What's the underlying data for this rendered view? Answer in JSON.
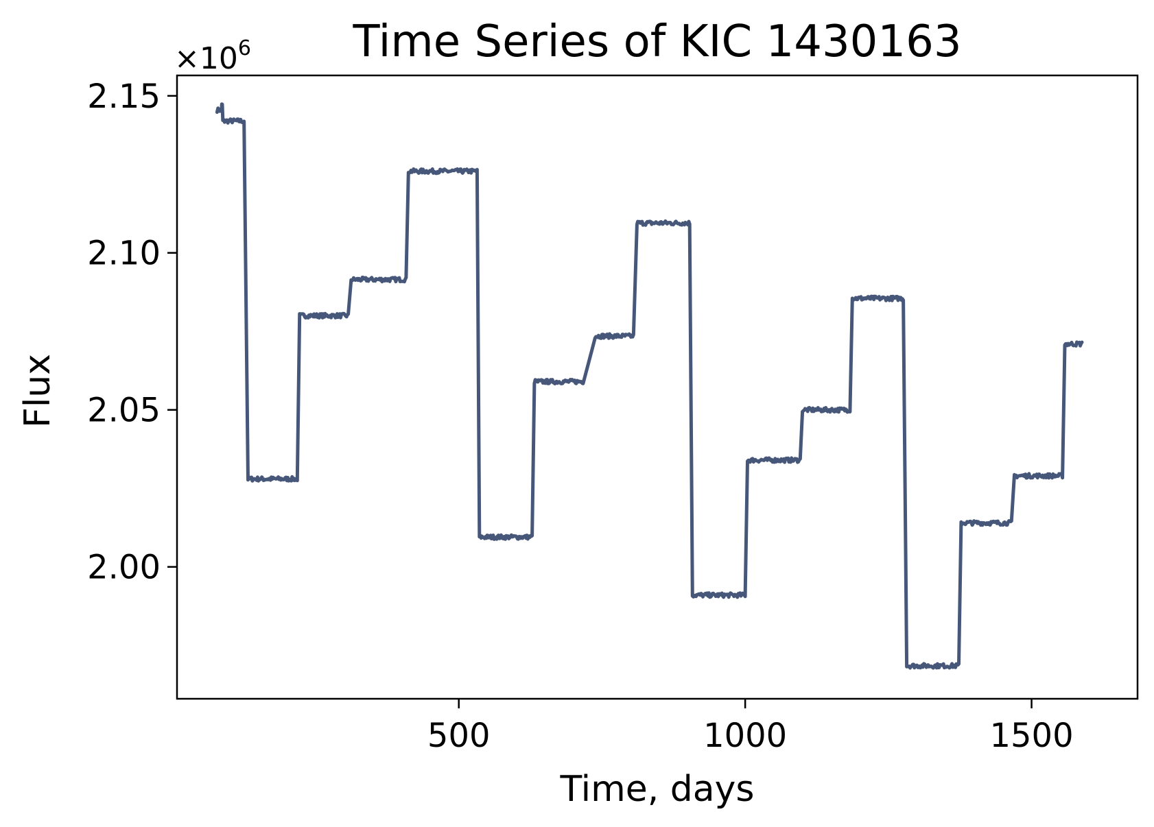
{
  "chart_data": {
    "type": "line",
    "title": "Time Series of KIC 1430163",
    "xlabel": "Time, days",
    "ylabel": "Flux",
    "y_multiplier": {
      "base": "×10",
      "exp": "6"
    },
    "xlim": [
      8,
      1685
    ],
    "ylim": [
      1.958,
      2.1565
    ],
    "x_ticks": [
      500,
      1000,
      1500
    ],
    "x_tick_labels": [
      "500",
      "1000",
      "1500"
    ],
    "y_ticks": [
      2.0,
      2.05,
      2.1,
      2.15
    ],
    "y_tick_labels": [
      "2.00",
      "2.05",
      "2.10",
      "2.15"
    ],
    "grid": false,
    "color": "#46577a",
    "series": [
      {
        "segments": [
          {
            "x0": 78,
            "x1": 86,
            "y": 2.1455
          },
          {
            "x0": 86,
            "x1": 87,
            "y": 2.147
          },
          {
            "x0": 88,
            "x1": 125,
            "y": 2.142
          },
          {
            "x0": 132,
            "x1": 218,
            "y": 2.028
          },
          {
            "x0": 222,
            "x1": 307,
            "y": 2.08
          },
          {
            "x0": 312,
            "x1": 408,
            "y": 2.0915
          },
          {
            "x0": 412,
            "x1": 532,
            "y": 2.126
          },
          {
            "x0": 536,
            "x1": 628,
            "y": 2.0095
          },
          {
            "x0": 632,
            "x1": 717,
            "y": 2.059
          },
          {
            "x0": 738,
            "x1": 805,
            "y": 2.0735
          },
          {
            "x0": 811,
            "x1": 903,
            "y": 2.1095
          },
          {
            "x0": 908,
            "x1": 1000,
            "y": 1.991
          },
          {
            "x0": 1004,
            "x1": 1096,
            "y": 2.034
          },
          {
            "x0": 1100,
            "x1": 1183,
            "y": 2.05
          },
          {
            "x0": 1187,
            "x1": 1276,
            "y": 2.0855
          },
          {
            "x0": 1282,
            "x1": 1373,
            "y": 1.9685
          },
          {
            "x0": 1377,
            "x1": 1465,
            "y": 2.014
          },
          {
            "x0": 1470,
            "x1": 1554,
            "y": 2.029
          },
          {
            "x0": 1558,
            "x1": 1588,
            "y": 2.071
          }
        ],
        "noise": 0.0007
      }
    ]
  }
}
